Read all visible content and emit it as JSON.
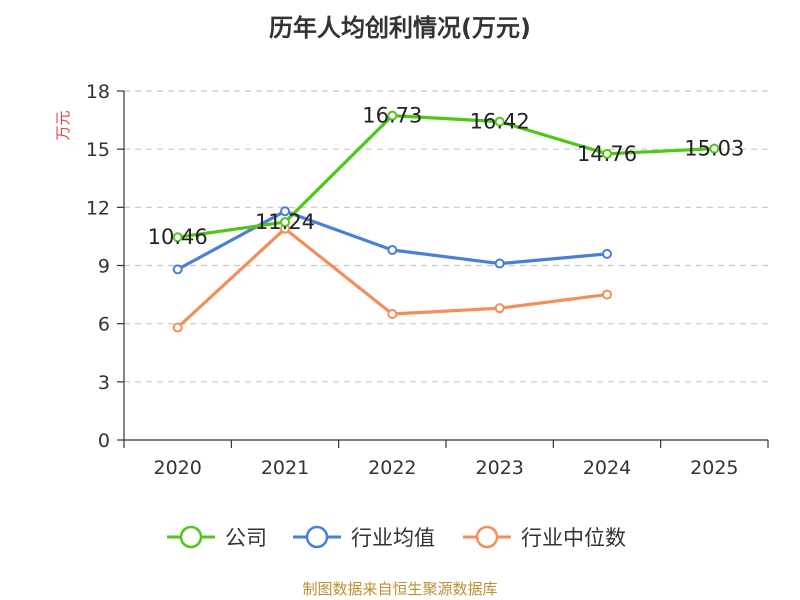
{
  "chart_data": {
    "type": "line",
    "title": "历年人均创利情况(万元)",
    "ylabel": "万元",
    "xlabel": "",
    "categories": [
      "2020",
      "2021",
      "2022",
      "2023",
      "2024",
      "2025"
    ],
    "ylim": [
      0,
      18
    ],
    "yticks": [
      0,
      3,
      6,
      9,
      12,
      15,
      18
    ],
    "grid": true,
    "legend_position": "bottom",
    "series": [
      {
        "name": "公司",
        "color": "#52c41a",
        "values": [
          10.46,
          11.24,
          16.73,
          16.42,
          14.76,
          15.03
        ],
        "labels": [
          "10.46",
          "11.24",
          "16.73",
          "16.42",
          "14.76",
          "15.03"
        ]
      },
      {
        "name": "行业均值",
        "color": "#4a7fd8",
        "values": [
          8.8,
          11.8,
          9.8,
          9.1,
          9.6,
          null
        ],
        "labels": []
      },
      {
        "name": "行业中位数",
        "color": "#f28e59",
        "values": [
          5.8,
          10.9,
          6.5,
          6.8,
          7.5,
          null
        ],
        "labels": []
      }
    ]
  },
  "source": "制图数据来自恒生聚源数据库"
}
